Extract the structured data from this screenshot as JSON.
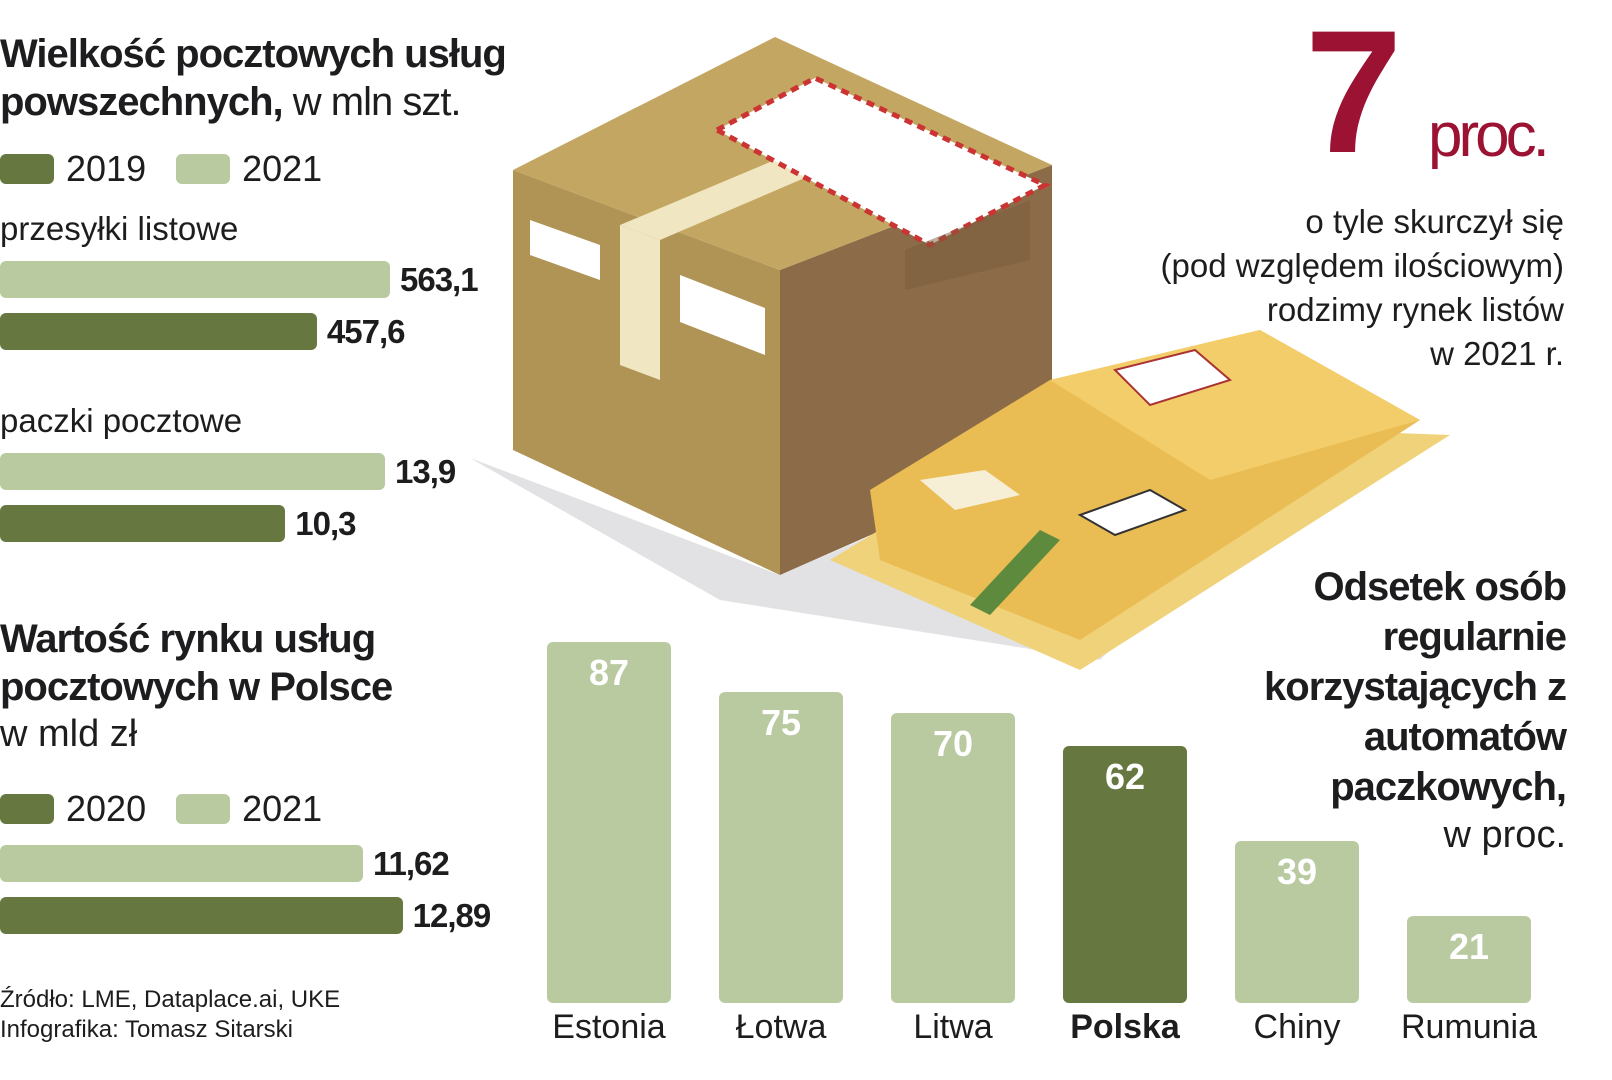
{
  "colors": {
    "dark": "#667740",
    "light": "#b9c9a0",
    "accent": "#9b1233"
  },
  "volume": {
    "title_bold": "Wielkość pocztowych usług powszechnych,",
    "title_unit": "w mln szt.",
    "legend": [
      "2019",
      "2021"
    ],
    "groups": [
      {
        "label": "przesyłki listowe",
        "bars": [
          {
            "year": "2021",
            "value": 563.1,
            "text": "563,1"
          },
          {
            "year": "2019",
            "value": 457.6,
            "text": "457,6"
          }
        ]
      },
      {
        "label": "paczki pocztowe",
        "bars": [
          {
            "year": "2021",
            "value": 13.9,
            "text": "13,9"
          },
          {
            "year": "2019",
            "value": 10.3,
            "text": "10,3"
          }
        ]
      }
    ]
  },
  "market": {
    "title_bold": "Wartość rynku usług pocztowych w Polsce",
    "title_unit": "w mld zł",
    "legend": [
      "2020",
      "2021"
    ],
    "bars": [
      {
        "year": "2021",
        "value": 11.62,
        "text": "11,62"
      },
      {
        "year": "2020",
        "value": 12.89,
        "text": "12,89"
      }
    ]
  },
  "highlight": {
    "number": "7",
    "unit": "proc.",
    "text": [
      "o tyle skurczył się",
      "(pod względem ilościowym)",
      "rodzimy rynek listów",
      "w 2021 r."
    ]
  },
  "chart_data": {
    "type": "bar",
    "title": "Odsetek osób regularnie korzystających z automatów paczkowych,",
    "unit": "w proc.",
    "categories": [
      "Estonia",
      "Łotwa",
      "Litwa",
      "Polska",
      "Chiny",
      "Rumunia"
    ],
    "values": [
      87,
      75,
      70,
      62,
      39,
      21
    ],
    "highlighted": "Polska",
    "ylim": [
      0,
      100
    ]
  },
  "footer": {
    "source": "Źródło: LME, Dataplace.ai, UKE",
    "credit": "Infografika: Tomasz Sitarski"
  }
}
